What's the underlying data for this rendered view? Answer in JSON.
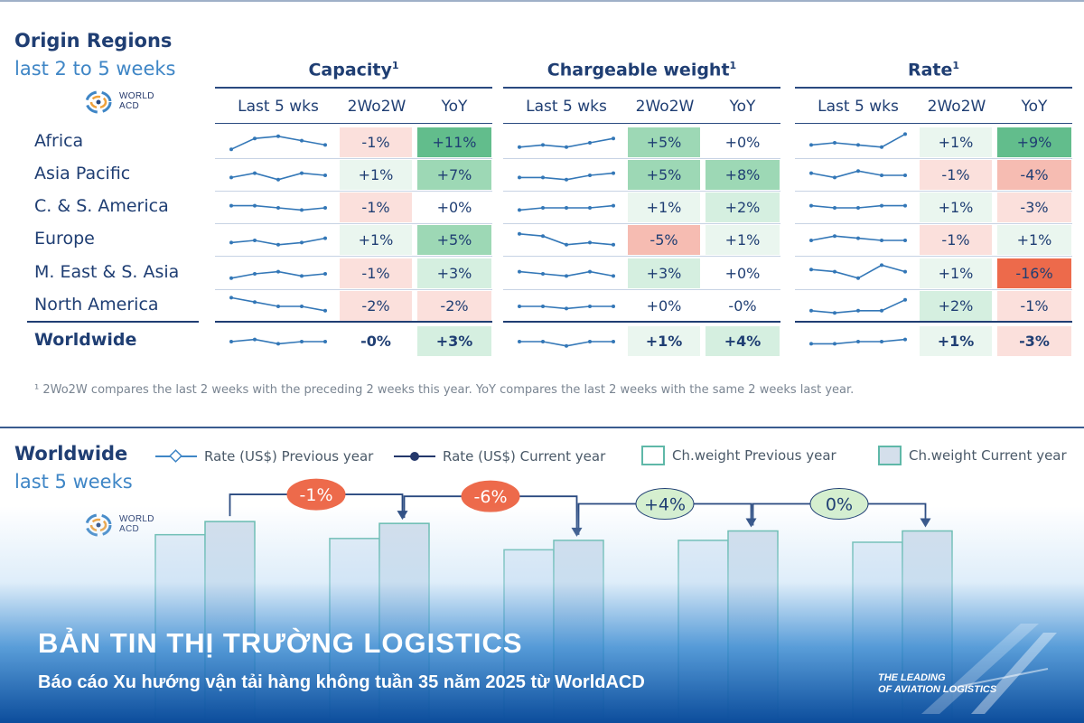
{
  "header": {
    "title": "Origin Regions",
    "subtitle": "last 2 to 5 weeks"
  },
  "logo": {
    "line1": "WORLD",
    "line2": "ACD"
  },
  "groups": [
    {
      "title": "Capacity",
      "sup": "1"
    },
    {
      "title": "Chargeable weight",
      "sup": "1"
    },
    {
      "title": "Rate",
      "sup": "1"
    }
  ],
  "col_headers": [
    "Last 5 wks",
    "2Wo2W",
    "YoY"
  ],
  "colors": {
    "pos_strong": "#62bd8c",
    "pos_mid": "#9dd8b5",
    "pos_light": "#d5efe0",
    "pos_faint": "#eaf6ef",
    "neg_strong": "#ed6a4b",
    "neg_mid": "#f6bcb2",
    "neg_light": "#fbe0dc",
    "neutral": "#ffffff",
    "spark": "#3377b7"
  },
  "rows": [
    {
      "region": "Africa",
      "bold": false,
      "metrics": [
        {
          "spark": [
            2,
            7,
            8,
            6,
            4
          ],
          "wo": "-1%",
          "yoy": "+11%"
        },
        {
          "spark": [
            3,
            4,
            3,
            5,
            7
          ],
          "wo": "+5%",
          "yoy": "+0%"
        },
        {
          "spark": [
            4,
            5,
            4,
            3,
            9
          ],
          "wo": "+1%",
          "yoy": "+9%"
        }
      ]
    },
    {
      "region": "Asia Pacific",
      "bold": false,
      "metrics": [
        {
          "spark": [
            4,
            6,
            3,
            6,
            5
          ],
          "wo": "+1%",
          "yoy": "+7%"
        },
        {
          "spark": [
            4,
            4,
            3,
            5,
            6
          ],
          "wo": "+5%",
          "yoy": "+8%"
        },
        {
          "spark": [
            6,
            4,
            7,
            5,
            5
          ],
          "wo": "-1%",
          "yoy": "-4%"
        }
      ]
    },
    {
      "region": "C. & S. America",
      "bold": false,
      "metrics": [
        {
          "spark": [
            6,
            6,
            5,
            4,
            5
          ],
          "wo": "-1%",
          "yoy": "+0%"
        },
        {
          "spark": [
            4,
            5,
            5,
            5,
            6
          ],
          "wo": "+1%",
          "yoy": "+2%"
        },
        {
          "spark": [
            6,
            5,
            5,
            6,
            6
          ],
          "wo": "+1%",
          "yoy": "-3%"
        }
      ]
    },
    {
      "region": "Europe",
      "bold": false,
      "metrics": [
        {
          "spark": [
            4,
            5,
            3,
            4,
            6
          ],
          "wo": "+1%",
          "yoy": "+5%"
        },
        {
          "spark": [
            8,
            7,
            3,
            4,
            3
          ],
          "wo": "-5%",
          "yoy": "+1%"
        },
        {
          "spark": [
            5,
            7,
            6,
            5,
            5
          ],
          "wo": "-1%",
          "yoy": "+1%"
        }
      ]
    },
    {
      "region": "M. East & S. Asia",
      "bold": false,
      "metrics": [
        {
          "spark": [
            3,
            5,
            6,
            4,
            5
          ],
          "wo": "-1%",
          "yoy": "+3%"
        },
        {
          "spark": [
            6,
            5,
            4,
            6,
            4
          ],
          "wo": "+3%",
          "yoy": "+0%"
        },
        {
          "spark": [
            7,
            6,
            3,
            9,
            6
          ],
          "wo": "+1%",
          "yoy": "-16%"
        }
      ]
    },
    {
      "region": "North America",
      "bold": false,
      "metrics": [
        {
          "spark": [
            9,
            7,
            5,
            5,
            3
          ],
          "wo": "-2%",
          "yoy": "-2%"
        },
        {
          "spark": [
            5,
            5,
            4,
            5,
            5
          ],
          "wo": "+0%",
          "yoy": "-0%"
        },
        {
          "spark": [
            3,
            2,
            3,
            3,
            8
          ],
          "wo": "+2%",
          "yoy": "-1%"
        }
      ]
    },
    {
      "region": "Worldwide",
      "bold": true,
      "metrics": [
        {
          "spark": [
            5,
            6,
            4,
            5,
            5
          ],
          "wo": "-0%",
          "yoy": "+3%"
        },
        {
          "spark": [
            5,
            5,
            3,
            5,
            5
          ],
          "wo": "+1%",
          "yoy": "+4%"
        },
        {
          "spark": [
            4,
            4,
            5,
            5,
            6
          ],
          "wo": "+1%",
          "yoy": "-3%"
        }
      ]
    }
  ],
  "footnote": "¹ 2Wo2W compares the last 2 weeks with the preceding 2 weeks this year. YoY compares the last 2 weeks with the same 2 weeks last year.",
  "worldwide": {
    "title": "Worldwide",
    "subtitle": "last 5 weeks"
  },
  "legend": [
    "Rate (US$) Previous year",
    "Rate (US$) Current year",
    "Ch.weight Previous year",
    "Ch.weight Current year"
  ],
  "chart_data": {
    "type": "bar",
    "title": "Worldwide last 5 weeks",
    "xlabel": "",
    "ylabel": "",
    "series": [
      {
        "name": "Ch.weight Previous year",
        "values": [
          100,
          98,
          92,
          97,
          96
        ]
      },
      {
        "name": "Ch.weight Current year",
        "values": [
          107,
          106,
          97,
          102,
          102
        ]
      }
    ],
    "week_changes": [
      "-1%",
      "-6%",
      "+4%",
      "0%"
    ],
    "ylim": [
      0,
      120
    ]
  },
  "banner": {
    "title": "BẢN TIN THỊ TRƯỜNG LOGISTICS",
    "subtitle": "Báo cáo Xu hướng vận tải hàng không tuần 35 năm 2025 từ WorldACD",
    "tagline1": "THE LEADING",
    "tagline2": "OF AVIATION LOGISTICS"
  }
}
